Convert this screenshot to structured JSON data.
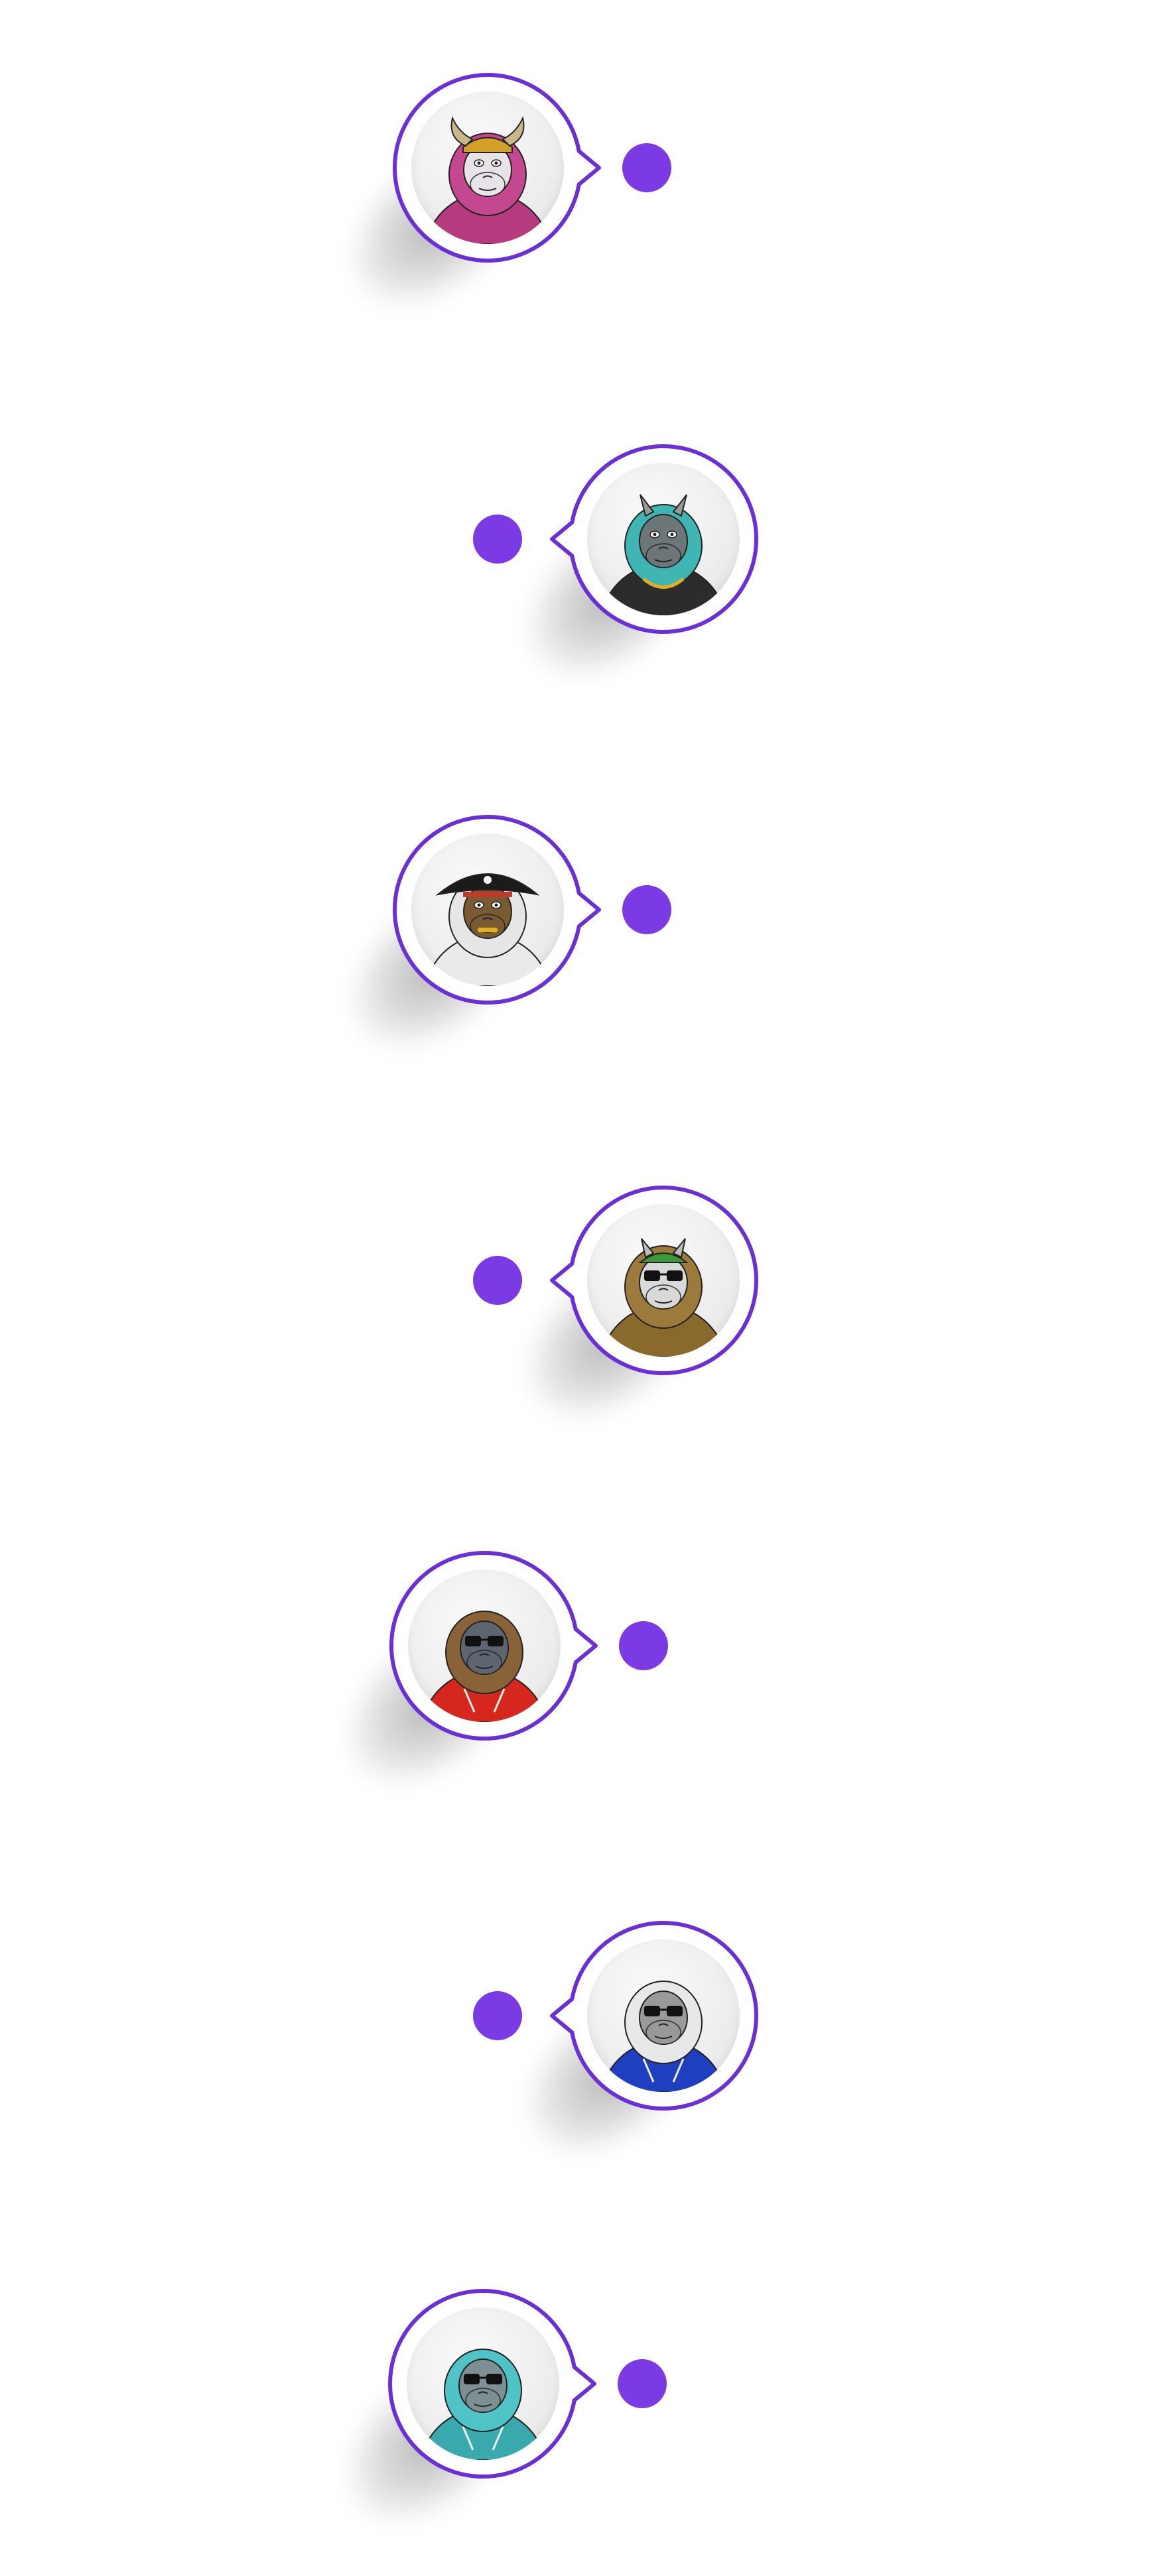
{
  "theme": {
    "accent": "#6a2fd6",
    "dot": "#7b3ae4"
  },
  "milestones": [
    {
      "side": "left",
      "avatar": "viking-ape-avatar",
      "hat": "horned-helmet",
      "fur": "#c4488f",
      "skin": "#e7e3e8",
      "outfit": "#b63a7e"
    },
    {
      "side": "right",
      "avatar": "teal-horned-ape-avatar",
      "hat": "horns",
      "fur": "#3fb6b3",
      "skin": "#6d7679",
      "outfit": "#2c2c2c"
    },
    {
      "side": "left",
      "avatar": "pirate-ape-avatar",
      "hat": "pirate-hat",
      "fur": "#e6e6e6",
      "skin": "#7a5a33",
      "outfit": "#eaeaea"
    },
    {
      "side": "right",
      "avatar": "green-cap-ape-avatar",
      "hat": "green-cap",
      "fur": "#9b7a3c",
      "skin": "#d9d9d9",
      "outfit": "#8a6a2c"
    },
    {
      "side": "left",
      "avatar": "red-hoodie-ape-avatar",
      "hat": "sunglasses",
      "fur": "#8a6237",
      "skin": "#5d6670",
      "outfit": "#d6271f"
    },
    {
      "side": "right",
      "avatar": "blue-hoodie-ape-avatar",
      "hat": "sunglasses",
      "fur": "#e8e8e8",
      "skin": "#9a9a9a",
      "outfit": "#1e3fbf"
    },
    {
      "side": "left",
      "avatar": "teal-glasses-ape-avatar",
      "hat": "glasses",
      "fur": "#4fc3c6",
      "skin": "#7d8f92",
      "outfit": "#3aa9ad"
    }
  ]
}
